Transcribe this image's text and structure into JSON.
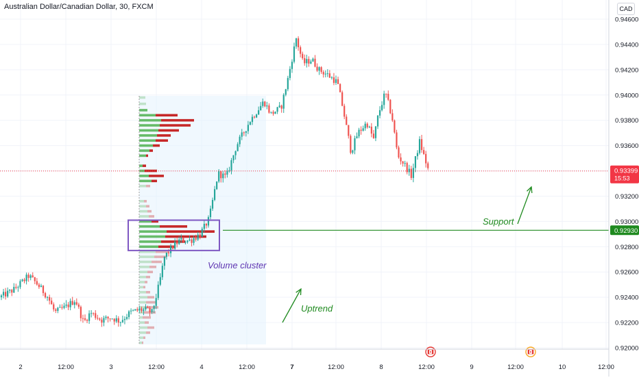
{
  "header": {
    "title": "Australian Dollar/Canadian Dollar, 30, FXCM",
    "currency_button": "CAD"
  },
  "chart_data": {
    "type": "candlestick",
    "y_axis": {
      "range": [
        0.9197,
        0.9466
      ],
      "ticks": [
        "0.94600",
        "0.94400",
        "0.94200",
        "0.94000",
        "0.93800",
        "0.93600",
        "0.93400",
        "0.93200",
        "0.93000",
        "0.92800",
        "0.92600",
        "0.92400",
        "0.92200",
        "0.92000"
      ]
    },
    "x_axis": {
      "ticks": [
        "2",
        "12:00",
        "3",
        "12:00",
        "4",
        "12:00",
        "7",
        "12:00",
        "8",
        "12:00",
        "9",
        "12:00",
        "10",
        "12:00"
      ],
      "bold_ticks": [
        "7"
      ]
    },
    "price_labels": [
      {
        "value": "0.93399",
        "time": "15:53",
        "price": 0.93399,
        "color": "#f23645"
      },
      {
        "value": "0.92930",
        "price": 0.9293,
        "color": "#1f8a1f"
      }
    ],
    "annotations": {
      "volume_cluster": "Volume cluster",
      "support": "Support",
      "uptrend": "Uptrend"
    },
    "support_level": 0.9293,
    "current_price": 0.93399,
    "cluster_box": {
      "y_top": 0.9301,
      "y_bottom": 0.9277
    },
    "path_anchors": [
      [
        0,
        0.924
      ],
      [
        20,
        0.9246
      ],
      [
        42,
        0.9257
      ],
      [
        55,
        0.925
      ],
      [
        70,
        0.924
      ],
      [
        80,
        0.9228
      ],
      [
        95,
        0.9232
      ],
      [
        110,
        0.9238
      ],
      [
        122,
        0.922
      ],
      [
        132,
        0.9228
      ],
      [
        148,
        0.9222
      ],
      [
        162,
        0.9224
      ],
      [
        175,
        0.9221
      ],
      [
        190,
        0.9228
      ],
      [
        203,
        0.923
      ],
      [
        213,
        0.923
      ],
      [
        222,
        0.9228
      ],
      [
        232,
        0.925
      ],
      [
        240,
        0.9272
      ],
      [
        252,
        0.928
      ],
      [
        262,
        0.9285
      ],
      [
        278,
        0.9285
      ],
      [
        292,
        0.929
      ],
      [
        305,
        0.9302
      ],
      [
        318,
        0.9338
      ],
      [
        330,
        0.9335
      ],
      [
        345,
        0.936
      ],
      [
        365,
        0.938
      ],
      [
        385,
        0.9395
      ],
      [
        395,
        0.9385
      ],
      [
        410,
        0.939
      ],
      [
        420,
        0.9413
      ],
      [
        432,
        0.9445
      ],
      [
        442,
        0.9425
      ],
      [
        455,
        0.9428
      ],
      [
        465,
        0.942
      ],
      [
        478,
        0.9416
      ],
      [
        492,
        0.941
      ],
      [
        500,
        0.939
      ],
      [
        512,
        0.9355
      ],
      [
        522,
        0.937
      ],
      [
        535,
        0.9378
      ],
      [
        545,
        0.9365
      ],
      [
        552,
        0.9385
      ],
      [
        562,
        0.9402
      ],
      [
        572,
        0.9382
      ],
      [
        580,
        0.9352
      ],
      [
        590,
        0.9345
      ],
      [
        600,
        0.9336
      ],
      [
        612,
        0.9363
      ],
      [
        625,
        0.934
      ]
    ],
    "volume_profile": [
      [
        0.9398,
        9,
        0
      ],
      [
        0.9393,
        10,
        0
      ],
      [
        0.9388,
        12,
        0
      ],
      [
        0.9384,
        24,
        32
      ],
      [
        0.938,
        32,
        48
      ],
      [
        0.9376,
        30,
        45
      ],
      [
        0.9372,
        28,
        30
      ],
      [
        0.9368,
        26,
        20
      ],
      [
        0.9364,
        24,
        18
      ],
      [
        0.936,
        20,
        10
      ],
      [
        0.9356,
        15,
        5
      ],
      [
        0.9352,
        10,
        3
      ],
      [
        0.9344,
        5,
        5
      ],
      [
        0.934,
        8,
        18
      ],
      [
        0.9336,
        14,
        22
      ],
      [
        0.9332,
        18,
        8
      ],
      [
        0.9328,
        10,
        6
      ],
      [
        0.9316,
        7,
        4
      ],
      [
        0.9312,
        10,
        5
      ],
      [
        0.9308,
        12,
        6
      ],
      [
        0.9304,
        14,
        8
      ],
      [
        0.93,
        18,
        10
      ],
      [
        0.9296,
        30,
        40
      ],
      [
        0.9292,
        40,
        70
      ],
      [
        0.9288,
        38,
        60
      ],
      [
        0.9284,
        32,
        35
      ],
      [
        0.928,
        28,
        25
      ],
      [
        0.9276,
        24,
        20
      ],
      [
        0.9272,
        22,
        18
      ],
      [
        0.9268,
        18,
        15
      ],
      [
        0.9264,
        15,
        10
      ],
      [
        0.926,
        12,
        8
      ],
      [
        0.9256,
        10,
        6
      ],
      [
        0.9252,
        8,
        4
      ],
      [
        0.9248,
        6,
        3
      ],
      [
        0.9244,
        10,
        6
      ],
      [
        0.924,
        12,
        10
      ],
      [
        0.9236,
        10,
        14
      ],
      [
        0.9232,
        8,
        20
      ],
      [
        0.9228,
        6,
        18
      ],
      [
        0.9224,
        5,
        12
      ],
      [
        0.922,
        8,
        6
      ],
      [
        0.9216,
        12,
        10
      ],
      [
        0.9212,
        10,
        6
      ],
      [
        0.9208,
        6,
        3
      ],
      [
        0.9204,
        4,
        2
      ]
    ],
    "colors": {
      "up": "#26a69a",
      "down": "#ef5350",
      "vp_up": "#66bb6a",
      "vp_down": "#c62828",
      "cluster": "#7e57c2",
      "support": "#1f8a1f",
      "annotation_green": "#1f8a1f",
      "annotation_purple": "#5e35b1"
    }
  }
}
